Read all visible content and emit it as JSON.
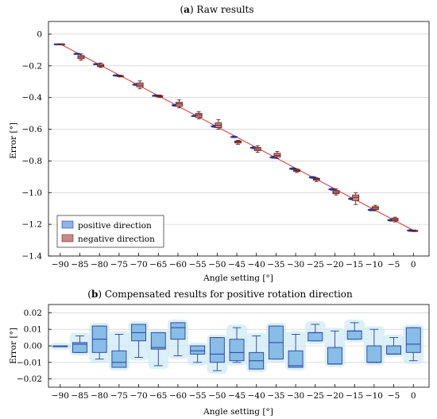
{
  "chart_data": [
    {
      "type": "box",
      "title_prefix": "(",
      "title_letter": "a",
      "title_rest": ") Raw results",
      "xlabel": "Angle setting [°]",
      "ylabel": "Error [°]",
      "xlim": [
        -93,
        4
      ],
      "ylim": [
        -1.4,
        0.08
      ],
      "xticks": [
        -90,
        -85,
        -80,
        -75,
        -70,
        -65,
        -60,
        -55,
        -50,
        -45,
        -40,
        -35,
        -30,
        -25,
        -20,
        -15,
        -10,
        -5,
        0
      ],
      "yticks": [
        0,
        -0.2,
        -0.4,
        -0.6,
        -0.8,
        -1.0,
        -1.2,
        -1.4
      ],
      "ytick_labels": [
        "0",
        "−0.2",
        "−0.4",
        "−0.6",
        "−0.8",
        "−1.0",
        "−1.2",
        "−1.4"
      ],
      "grid": true,
      "legend_position": "bottom-left",
      "colors": {
        "positive": "#8fb4e3",
        "negative": "#c48a8a",
        "fit_line": "#e03030"
      },
      "legend": [
        {
          "label": "positive direction",
          "color": "#8fb4e3"
        },
        {
          "label": "negative direction",
          "color": "#c48a8a"
        }
      ],
      "fit_line": {
        "x": [
          -90,
          0
        ],
        "y": [
          -0.062,
          -1.238
        ]
      },
      "series": [
        {
          "name": "positive direction",
          "boxes": [
            {
              "x": -90,
              "min": -0.062,
              "q1": -0.062,
              "median": -0.062,
              "q3": -0.062,
              "max": -0.062
            },
            {
              "x": -85,
              "min": -0.127,
              "q1": -0.125,
              "median": -0.124,
              "q3": -0.122,
              "max": -0.12
            },
            {
              "x": -80,
              "min": -0.192,
              "q1": -0.19,
              "median": -0.189,
              "q3": -0.187,
              "max": -0.185
            },
            {
              "x": -75,
              "min": -0.265,
              "q1": -0.262,
              "median": -0.26,
              "q3": -0.258,
              "max": -0.256
            },
            {
              "x": -70,
              "min": -0.323,
              "q1": -0.321,
              "median": -0.319,
              "q3": -0.316,
              "max": -0.313
            },
            {
              "x": -65,
              "min": -0.393,
              "q1": -0.39,
              "median": -0.388,
              "q3": -0.386,
              "max": -0.383
            },
            {
              "x": -60,
              "min": -0.455,
              "q1": -0.452,
              "median": -0.449,
              "q3": -0.446,
              "max": -0.443
            },
            {
              "x": -55,
              "min": -0.52,
              "q1": -0.518,
              "median": -0.516,
              "q3": -0.514,
              "max": -0.512
            },
            {
              "x": -50,
              "min": -0.588,
              "q1": -0.585,
              "median": -0.582,
              "q3": -0.579,
              "max": -0.576
            },
            {
              "x": -45,
              "min": -0.653,
              "q1": -0.651,
              "median": -0.649,
              "q3": -0.646,
              "max": -0.643
            },
            {
              "x": -40,
              "min": -0.723,
              "q1": -0.72,
              "median": -0.717,
              "q3": -0.714,
              "max": -0.711
            },
            {
              "x": -35,
              "min": -0.783,
              "q1": -0.78,
              "median": -0.777,
              "q3": -0.774,
              "max": -0.771
            },
            {
              "x": -30,
              "min": -0.855,
              "q1": -0.852,
              "median": -0.849,
              "q3": -0.846,
              "max": -0.843
            },
            {
              "x": -25,
              "min": -0.91,
              "q1": -0.907,
              "median": -0.904,
              "q3": -0.901,
              "max": -0.898
            },
            {
              "x": -20,
              "min": -0.985,
              "q1": -0.982,
              "median": -0.979,
              "q3": -0.976,
              "max": -0.973
            },
            {
              "x": -15,
              "min": -1.045,
              "q1": -1.042,
              "median": -1.039,
              "q3": -1.036,
              "max": -1.033
            },
            {
              "x": -10,
              "min": -1.115,
              "q1": -1.112,
              "median": -1.109,
              "q3": -1.106,
              "max": -1.103
            },
            {
              "x": -5,
              "min": -1.18,
              "q1": -1.177,
              "median": -1.174,
              "q3": -1.171,
              "max": -1.168
            },
            {
              "x": 0,
              "min": -1.245,
              "q1": -1.242,
              "median": -1.239,
              "q3": -1.236,
              "max": -1.233
            }
          ]
        },
        {
          "name": "negative direction",
          "boxes": [
            {
              "x": -90,
              "min": -0.062,
              "q1": -0.062,
              "median": -0.062,
              "q3": -0.062,
              "max": -0.062
            },
            {
              "x": -85,
              "min": -0.165,
              "q1": -0.155,
              "median": -0.145,
              "q3": -0.135,
              "max": -0.125
            },
            {
              "x": -80,
              "min": -0.21,
              "q1": -0.205,
              "median": -0.199,
              "q3": -0.19,
              "max": -0.182
            },
            {
              "x": -75,
              "min": -0.27,
              "q1": -0.267,
              "median": -0.265,
              "q3": -0.262,
              "max": -0.259
            },
            {
              "x": -70,
              "min": -0.345,
              "q1": -0.333,
              "median": -0.322,
              "q3": -0.308,
              "max": -0.295
            },
            {
              "x": -65,
              "min": -0.4,
              "q1": -0.396,
              "median": -0.391,
              "q3": -0.388,
              "max": -0.384
            },
            {
              "x": -60,
              "min": -0.465,
              "q1": -0.455,
              "median": -0.44,
              "q3": -0.43,
              "max": -0.415
            },
            {
              "x": -55,
              "min": -0.535,
              "q1": -0.525,
              "median": -0.51,
              "q3": -0.5,
              "max": -0.49
            },
            {
              "x": -50,
              "min": -0.6,
              "q1": -0.59,
              "median": -0.575,
              "q3": -0.56,
              "max": -0.54
            },
            {
              "x": -45,
              "min": -0.695,
              "q1": -0.687,
              "median": -0.68,
              "q3": -0.674,
              "max": -0.67
            },
            {
              "x": -40,
              "min": -0.745,
              "q1": -0.735,
              "median": -0.725,
              "q3": -0.715,
              "max": -0.705
            },
            {
              "x": -35,
              "min": -0.785,
              "q1": -0.775,
              "median": -0.765,
              "q3": -0.752,
              "max": -0.74
            },
            {
              "x": -30,
              "min": -0.873,
              "q1": -0.866,
              "median": -0.86,
              "q3": -0.854,
              "max": -0.85
            },
            {
              "x": -25,
              "min": -0.93,
              "q1": -0.922,
              "median": -0.915,
              "q3": -0.91,
              "max": -0.905
            },
            {
              "x": -20,
              "min": -1.015,
              "q1": -1.007,
              "median": -0.997,
              "q3": -0.987,
              "max": -0.977
            },
            {
              "x": -15,
              "min": -1.075,
              "q1": -1.05,
              "median": -1.03,
              "q3": -1.015,
              "max": -1.0
            },
            {
              "x": -10,
              "min": -1.115,
              "q1": -1.107,
              "median": -1.097,
              "q3": -1.088,
              "max": -1.08
            },
            {
              "x": -5,
              "min": -1.185,
              "q1": -1.178,
              "median": -1.17,
              "q3": -1.162,
              "max": -1.155
            },
            {
              "x": 0,
              "min": -1.246,
              "q1": -1.243,
              "median": -1.241,
              "q3": -1.239,
              "max": -1.236
            }
          ]
        }
      ]
    },
    {
      "type": "box",
      "title_prefix": "(",
      "title_letter": "b",
      "title_rest": ") Compensated results for positive rotation direction",
      "xlabel": "Angle setting [°]",
      "ylabel": "Error [°]",
      "xlim": [
        -93,
        4
      ],
      "ylim": [
        -0.025,
        0.025
      ],
      "xticks": [
        -90,
        -85,
        -80,
        -75,
        -70,
        -65,
        -60,
        -55,
        -50,
        -45,
        -40,
        -35,
        -30,
        -25,
        -20,
        -15,
        -10,
        -5,
        0
      ],
      "yticks": [
        0.02,
        0.01,
        0.0,
        -0.01,
        -0.02
      ],
      "ytick_labels": [
        "0.02",
        "0.01",
        "0.00",
        "−0.01",
        "−0.02"
      ],
      "grid": true,
      "colors": {
        "box_fill": "#87bde6",
        "box_edge": "#2a3f9e",
        "halo": "#cdeaf7"
      },
      "series": [
        {
          "name": "",
          "boxes": [
            {
              "x": -90,
              "min": 0.0,
              "q1": 0.0,
              "median": 0.0,
              "q3": 0.0,
              "max": 0.0
            },
            {
              "x": -85,
              "min": -0.004,
              "q1": -0.004,
              "median": 0.001,
              "q3": 0.002,
              "max": 0.006
            },
            {
              "x": -80,
              "min": -0.008,
              "q1": -0.004,
              "median": 0.004,
              "q3": 0.012,
              "max": 0.012
            },
            {
              "x": -75,
              "min": -0.013,
              "q1": -0.013,
              "median": -0.01,
              "q3": -0.003,
              "max": 0.007
            },
            {
              "x": -70,
              "min": -0.007,
              "q1": 0.003,
              "median": 0.008,
              "q3": 0.013,
              "max": 0.013
            },
            {
              "x": -65,
              "min": -0.012,
              "q1": -0.002,
              "median": -0.001,
              "q3": 0.008,
              "max": 0.008
            },
            {
              "x": -60,
              "min": -0.006,
              "q1": 0.004,
              "median": 0.011,
              "q3": 0.014,
              "max": 0.014
            },
            {
              "x": -55,
              "min": -0.01,
              "q1": -0.005,
              "median": -0.003,
              "q3": 0.0,
              "max": 0.0
            },
            {
              "x": -50,
              "min": -0.015,
              "q1": -0.01,
              "median": -0.005,
              "q3": 0.005,
              "max": 0.005
            },
            {
              "x": -45,
              "min": -0.01,
              "q1": -0.009,
              "median": -0.004,
              "q3": 0.004,
              "max": 0.011
            },
            {
              "x": -40,
              "min": -0.014,
              "q1": -0.014,
              "median": -0.009,
              "q3": -0.004,
              "max": 0.006
            },
            {
              "x": -35,
              "min": -0.008,
              "q1": -0.008,
              "median": 0.002,
              "q3": 0.012,
              "max": 0.012
            },
            {
              "x": -30,
              "min": -0.013,
              "q1": -0.013,
              "median": -0.012,
              "q3": -0.003,
              "max": 0.007
            },
            {
              "x": -25,
              "min": 0.003,
              "q1": 0.003,
              "median": 0.008,
              "q3": 0.008,
              "max": 0.013
            },
            {
              "x": -20,
              "min": -0.011,
              "q1": -0.011,
              "median": -0.011,
              "q3": -0.001,
              "max": 0.009
            },
            {
              "x": -15,
              "min": 0.004,
              "q1": 0.004,
              "median": 0.009,
              "q3": 0.009,
              "max": 0.014
            },
            {
              "x": -10,
              "min": -0.01,
              "q1": -0.01,
              "median": -0.01,
              "q3": 0.0,
              "max": 0.01
            },
            {
              "x": -5,
              "min": -0.005,
              "q1": -0.005,
              "median": -0.005,
              "q3": 0.0,
              "max": 0.005
            },
            {
              "x": 0,
              "min": -0.009,
              "q1": -0.004,
              "median": 0.001,
              "q3": 0.011,
              "max": 0.011
            }
          ]
        }
      ]
    }
  ]
}
